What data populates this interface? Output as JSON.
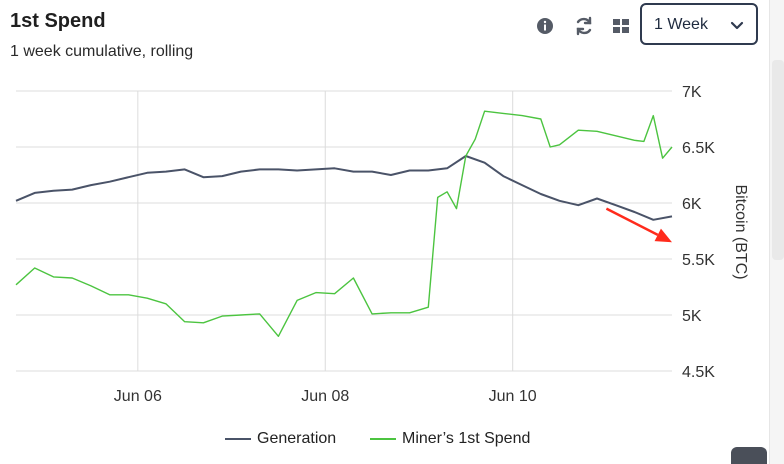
{
  "header": {
    "title": "1st Spend",
    "subtitle": "1 week cumulative, rolling",
    "range_select": {
      "selected": "1 Week"
    }
  },
  "colors": {
    "generation": "#4a5368",
    "spend": "#4cc440",
    "arrow": "#ff2b1c",
    "grid": "#dcdcdc"
  },
  "chart_data": {
    "type": "line",
    "title": "",
    "xlabel": "",
    "ylabel": "Bitcoin (BTC)",
    "x_ticks": [
      "Jun 06",
      "Jun 08",
      "Jun 10"
    ],
    "y_ticks": [
      "4.5K",
      "5K",
      "5.5K",
      "6K",
      "6.5K",
      "7K"
    ],
    "ylim": [
      4500,
      7000
    ],
    "xlim": [
      4.7,
      11.7
    ],
    "grid": true,
    "legend_position": "bottom-center",
    "series": [
      {
        "name": "Generation",
        "x": [
          4.7,
          4.9,
          5.1,
          5.3,
          5.5,
          5.7,
          5.9,
          6.1,
          6.3,
          6.5,
          6.7,
          6.9,
          7.1,
          7.3,
          7.5,
          7.7,
          7.9,
          8.1,
          8.3,
          8.5,
          8.7,
          8.9,
          9.1,
          9.3,
          9.5,
          9.7,
          9.9,
          10.1,
          10.3,
          10.5,
          10.7,
          10.9,
          11.1,
          11.3,
          11.5,
          11.7
        ],
        "y": [
          6020,
          6090,
          6110,
          6120,
          6160,
          6190,
          6230,
          6270,
          6280,
          6300,
          6230,
          6240,
          6280,
          6300,
          6300,
          6290,
          6300,
          6310,
          6280,
          6280,
          6250,
          6290,
          6290,
          6310,
          6420,
          6360,
          6240,
          6160,
          6080,
          6020,
          5980,
          6040,
          5980,
          5920,
          5850,
          5880
        ]
      },
      {
        "name": "Miner’s 1st Spend",
        "x": [
          4.7,
          4.9,
          5.1,
          5.3,
          5.5,
          5.7,
          5.9,
          6.1,
          6.3,
          6.5,
          6.7,
          6.9,
          7.1,
          7.3,
          7.5,
          7.7,
          7.9,
          8.1,
          8.3,
          8.5,
          8.7,
          8.9,
          9.1,
          9.2,
          9.3,
          9.4,
          9.5,
          9.6,
          9.7,
          9.9,
          10.1,
          10.3,
          10.4,
          10.5,
          10.7,
          10.9,
          11.1,
          11.3,
          11.4,
          11.5,
          11.6,
          11.7
        ],
        "y": [
          5270,
          5420,
          5340,
          5330,
          5260,
          5180,
          5180,
          5150,
          5100,
          4940,
          4930,
          4990,
          5000,
          5010,
          4810,
          5130,
          5200,
          5190,
          5330,
          5010,
          5020,
          5020,
          5070,
          6050,
          6100,
          5950,
          6420,
          6570,
          6820,
          6800,
          6780,
          6750,
          6500,
          6520,
          6650,
          6640,
          6600,
          6560,
          6550,
          6780,
          6400,
          6500
        ]
      }
    ],
    "annotations": [
      {
        "type": "arrow",
        "from": [
          11.0,
          5950
        ],
        "to": [
          11.7,
          5650
        ]
      }
    ]
  }
}
